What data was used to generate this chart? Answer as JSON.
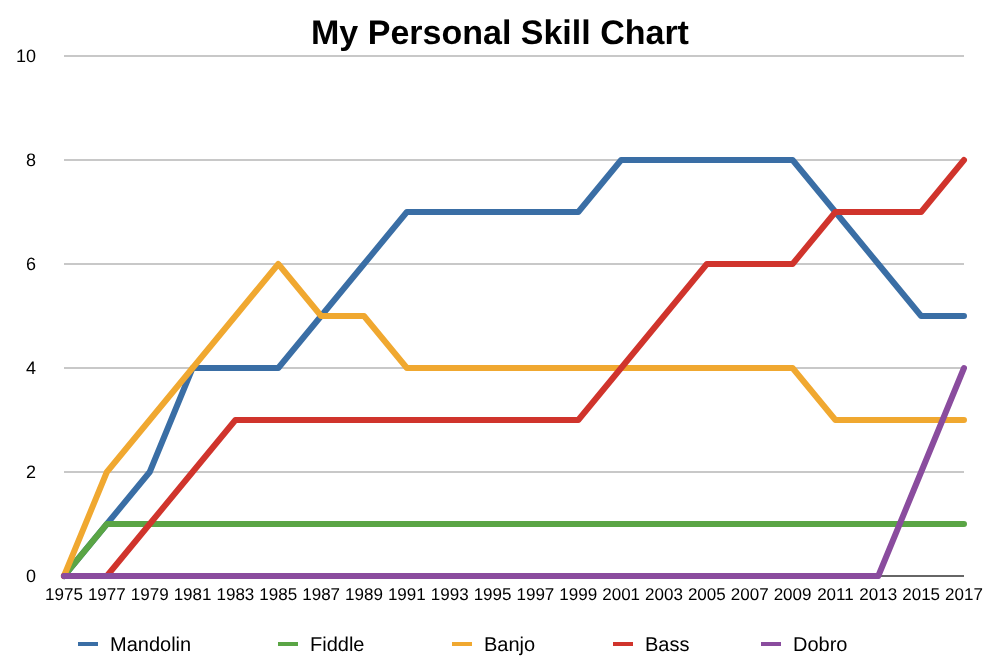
{
  "chart_data": {
    "type": "line",
    "title": "My Personal Skill Chart",
    "categories": [
      "1975",
      "1977",
      "1979",
      "1981",
      "1983",
      "1985",
      "1987",
      "1989",
      "1991",
      "1993",
      "1995",
      "1997",
      "1999",
      "2001",
      "2003",
      "2005",
      "2007",
      "2009",
      "2011",
      "2013",
      "2015",
      "2017"
    ],
    "series": [
      {
        "name": "Mandolin",
        "color": "#3a6ea5",
        "values": [
          0,
          1,
          2,
          4,
          4,
          4,
          5,
          6,
          7,
          7,
          7,
          7,
          7,
          8,
          8,
          8,
          8,
          8,
          7,
          6,
          5,
          5
        ]
      },
      {
        "name": "Fiddle",
        "color": "#5aa545",
        "values": [
          0,
          1,
          1,
          1,
          1,
          1,
          1,
          1,
          1,
          1,
          1,
          1,
          1,
          1,
          1,
          1,
          1,
          1,
          1,
          1,
          1,
          1
        ]
      },
      {
        "name": "Banjo",
        "color": "#f0a830",
        "values": [
          0,
          2,
          3,
          4,
          5,
          6,
          5,
          5,
          4,
          4,
          4,
          4,
          4,
          4,
          4,
          4,
          4,
          4,
          3,
          3,
          3,
          3
        ]
      },
      {
        "name": "Bass",
        "color": "#d0342c",
        "values": [
          0,
          0,
          1,
          2,
          3,
          3,
          3,
          3,
          3,
          3,
          3,
          3,
          3,
          4,
          5,
          6,
          6,
          6,
          7,
          7,
          7,
          8
        ]
      },
      {
        "name": "Dobro",
        "color": "#8a4c9e",
        "values": [
          0,
          0,
          0,
          0,
          0,
          0,
          0,
          0,
          0,
          0,
          0,
          0,
          0,
          0,
          0,
          0,
          0,
          0,
          0,
          0,
          2,
          4
        ]
      }
    ],
    "ylim": [
      0,
      10
    ],
    "yticks": [
      0,
      2,
      4,
      6,
      8,
      10
    ],
    "grid": "y",
    "legend": "bottom",
    "marker": "none",
    "line_style": "solid"
  }
}
